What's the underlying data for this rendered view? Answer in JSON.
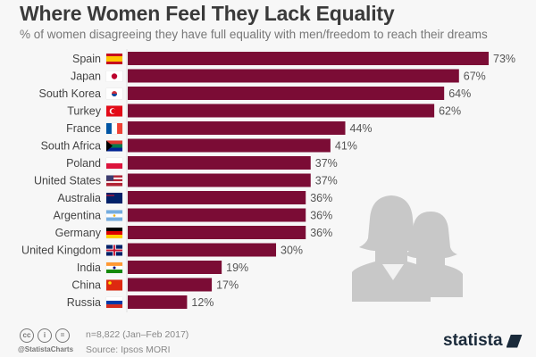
{
  "header": {
    "title": "Where Women Feel They Lack Equality",
    "subtitle": "% of women disagreeing they have full equality with men/freedom to reach their dreams"
  },
  "chart_data": {
    "type": "bar",
    "orientation": "horizontal",
    "title": "Where Women Feel They Lack Equality",
    "subtitle": "% of women disagreeing they have full equality with men/freedom to reach their dreams",
    "xlabel": "",
    "ylabel": "",
    "xlim": [
      0,
      73
    ],
    "grid": false,
    "bar_color": "#7b0c35",
    "value_suffix": "%",
    "categories": [
      "Spain",
      "Japan",
      "South Korea",
      "Turkey",
      "France",
      "South Africa",
      "Poland",
      "United States",
      "Australia",
      "Argentina",
      "Germany",
      "United Kingdom",
      "India",
      "China",
      "Russia"
    ],
    "flags": [
      "spain-flag",
      "japan-flag",
      "south-korea-flag",
      "turkey-flag",
      "france-flag",
      "south-africa-flag",
      "poland-flag",
      "united-states-flag",
      "australia-flag",
      "argentina-flag",
      "germany-flag",
      "united-kingdom-flag",
      "india-flag",
      "china-flag",
      "russia-flag"
    ],
    "values": [
      73,
      67,
      64,
      62,
      44,
      41,
      37,
      37,
      36,
      36,
      36,
      30,
      19,
      17,
      12
    ]
  },
  "illustration": "two-women-silhouette-icon",
  "footer": {
    "sample": "n=8,822 (Jan–Feb 2017)",
    "source": "Source: Ipsos MORI",
    "handle": "@StatistaCharts",
    "cc_icons": [
      "cc",
      "by",
      "nd"
    ],
    "brand": "statista"
  }
}
